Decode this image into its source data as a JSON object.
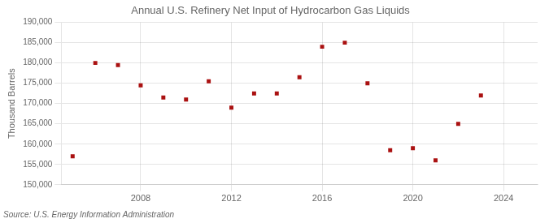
{
  "chart_data": {
    "type": "scatter",
    "title": "Annual U.S. Refinery Net Input of Hydrocarbon Gas Liquids",
    "ylabel": "Thousand Barrels",
    "source": "Source: U.S. Energy Information Administration",
    "x": [
      2005,
      2006,
      2007,
      2008,
      2009,
      2010,
      2011,
      2012,
      2013,
      2014,
      2015,
      2016,
      2017,
      2018,
      2019,
      2020,
      2021,
      2022,
      2023
    ],
    "values": [
      157000,
      180000,
      179500,
      174500,
      171500,
      171000,
      175500,
      169000,
      172500,
      172500,
      176500,
      184000,
      185000,
      175000,
      158500,
      159000,
      156000,
      165000,
      172000
    ],
    "color": "#aa1111",
    "marker": "square",
    "xlim": [
      2004.5,
      2025.5
    ],
    "xticks": [
      2008,
      2012,
      2016,
      2020,
      2024
    ],
    "ylim": [
      150000,
      190000
    ],
    "yticks": [
      {
        "value": 150000,
        "label": "150,000"
      },
      {
        "value": 155000,
        "label": "155,000"
      },
      {
        "value": 160000,
        "label": "160,000"
      },
      {
        "value": 165000,
        "label": "165,000"
      },
      {
        "value": 170000,
        "label": "170,000"
      },
      {
        "value": 175000,
        "label": "175,000"
      },
      {
        "value": 180000,
        "label": "180,000"
      },
      {
        "value": 185000,
        "label": "185,000"
      },
      {
        "value": 190000,
        "label": "190,000"
      }
    ],
    "grid": true
  }
}
